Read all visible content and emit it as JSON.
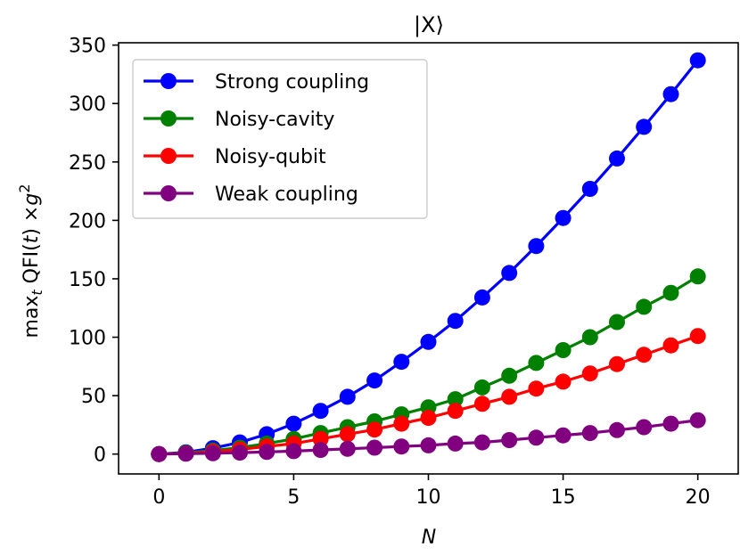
{
  "chart_data": {
    "type": "line",
    "title": "|X⟩",
    "xlabel": "N",
    "ylabel_parts": {
      "max": "max",
      "sub": "t",
      "qfi": " QFI(",
      "t": "t",
      "close": ") ×",
      "g": "g",
      "exp": "2"
    },
    "xlim": [
      -1.5,
      21.5
    ],
    "ylim": [
      -17,
      352
    ],
    "xticks": [
      0,
      5,
      10,
      15,
      20
    ],
    "yticks": [
      0,
      50,
      100,
      150,
      200,
      250,
      300,
      350
    ],
    "grid": false,
    "legend_position": "top-left",
    "x": [
      0,
      1,
      2,
      3,
      4,
      5,
      6,
      7,
      8,
      9,
      10,
      11,
      12,
      13,
      14,
      15,
      16,
      17,
      18,
      19,
      20
    ],
    "series": [
      {
        "name": "Strong coupling",
        "color": "#0000ff",
        "values": [
          0,
          1.5,
          5,
          10,
          17,
          26,
          37,
          49,
          63,
          79,
          96,
          114,
          134,
          155,
          178,
          202,
          227,
          253,
          280,
          308,
          337
        ]
      },
      {
        "name": "Noisy-cavity",
        "color": "#008000",
        "values": [
          0,
          1,
          3,
          5.5,
          9,
          13,
          18,
          23,
          28,
          34,
          40,
          47,
          57,
          67,
          78,
          89,
          100,
          113,
          126,
          138,
          152
        ]
      },
      {
        "name": "Noisy-qubit",
        "color": "#ff0000",
        "values": [
          0,
          0.5,
          2,
          4,
          6.5,
          9,
          13,
          17,
          21,
          26,
          31,
          37,
          43,
          49,
          56,
          62,
          69,
          77,
          85,
          93,
          101
        ]
      },
      {
        "name": "Weak coupling",
        "color": "#800080",
        "values": [
          0,
          0.3,
          0.7,
          1.2,
          1.8,
          2.5,
          3.5,
          4.5,
          5.5,
          6.5,
          7.5,
          9,
          10,
          12,
          14,
          16,
          18,
          20.5,
          23,
          26,
          29
        ]
      }
    ]
  }
}
